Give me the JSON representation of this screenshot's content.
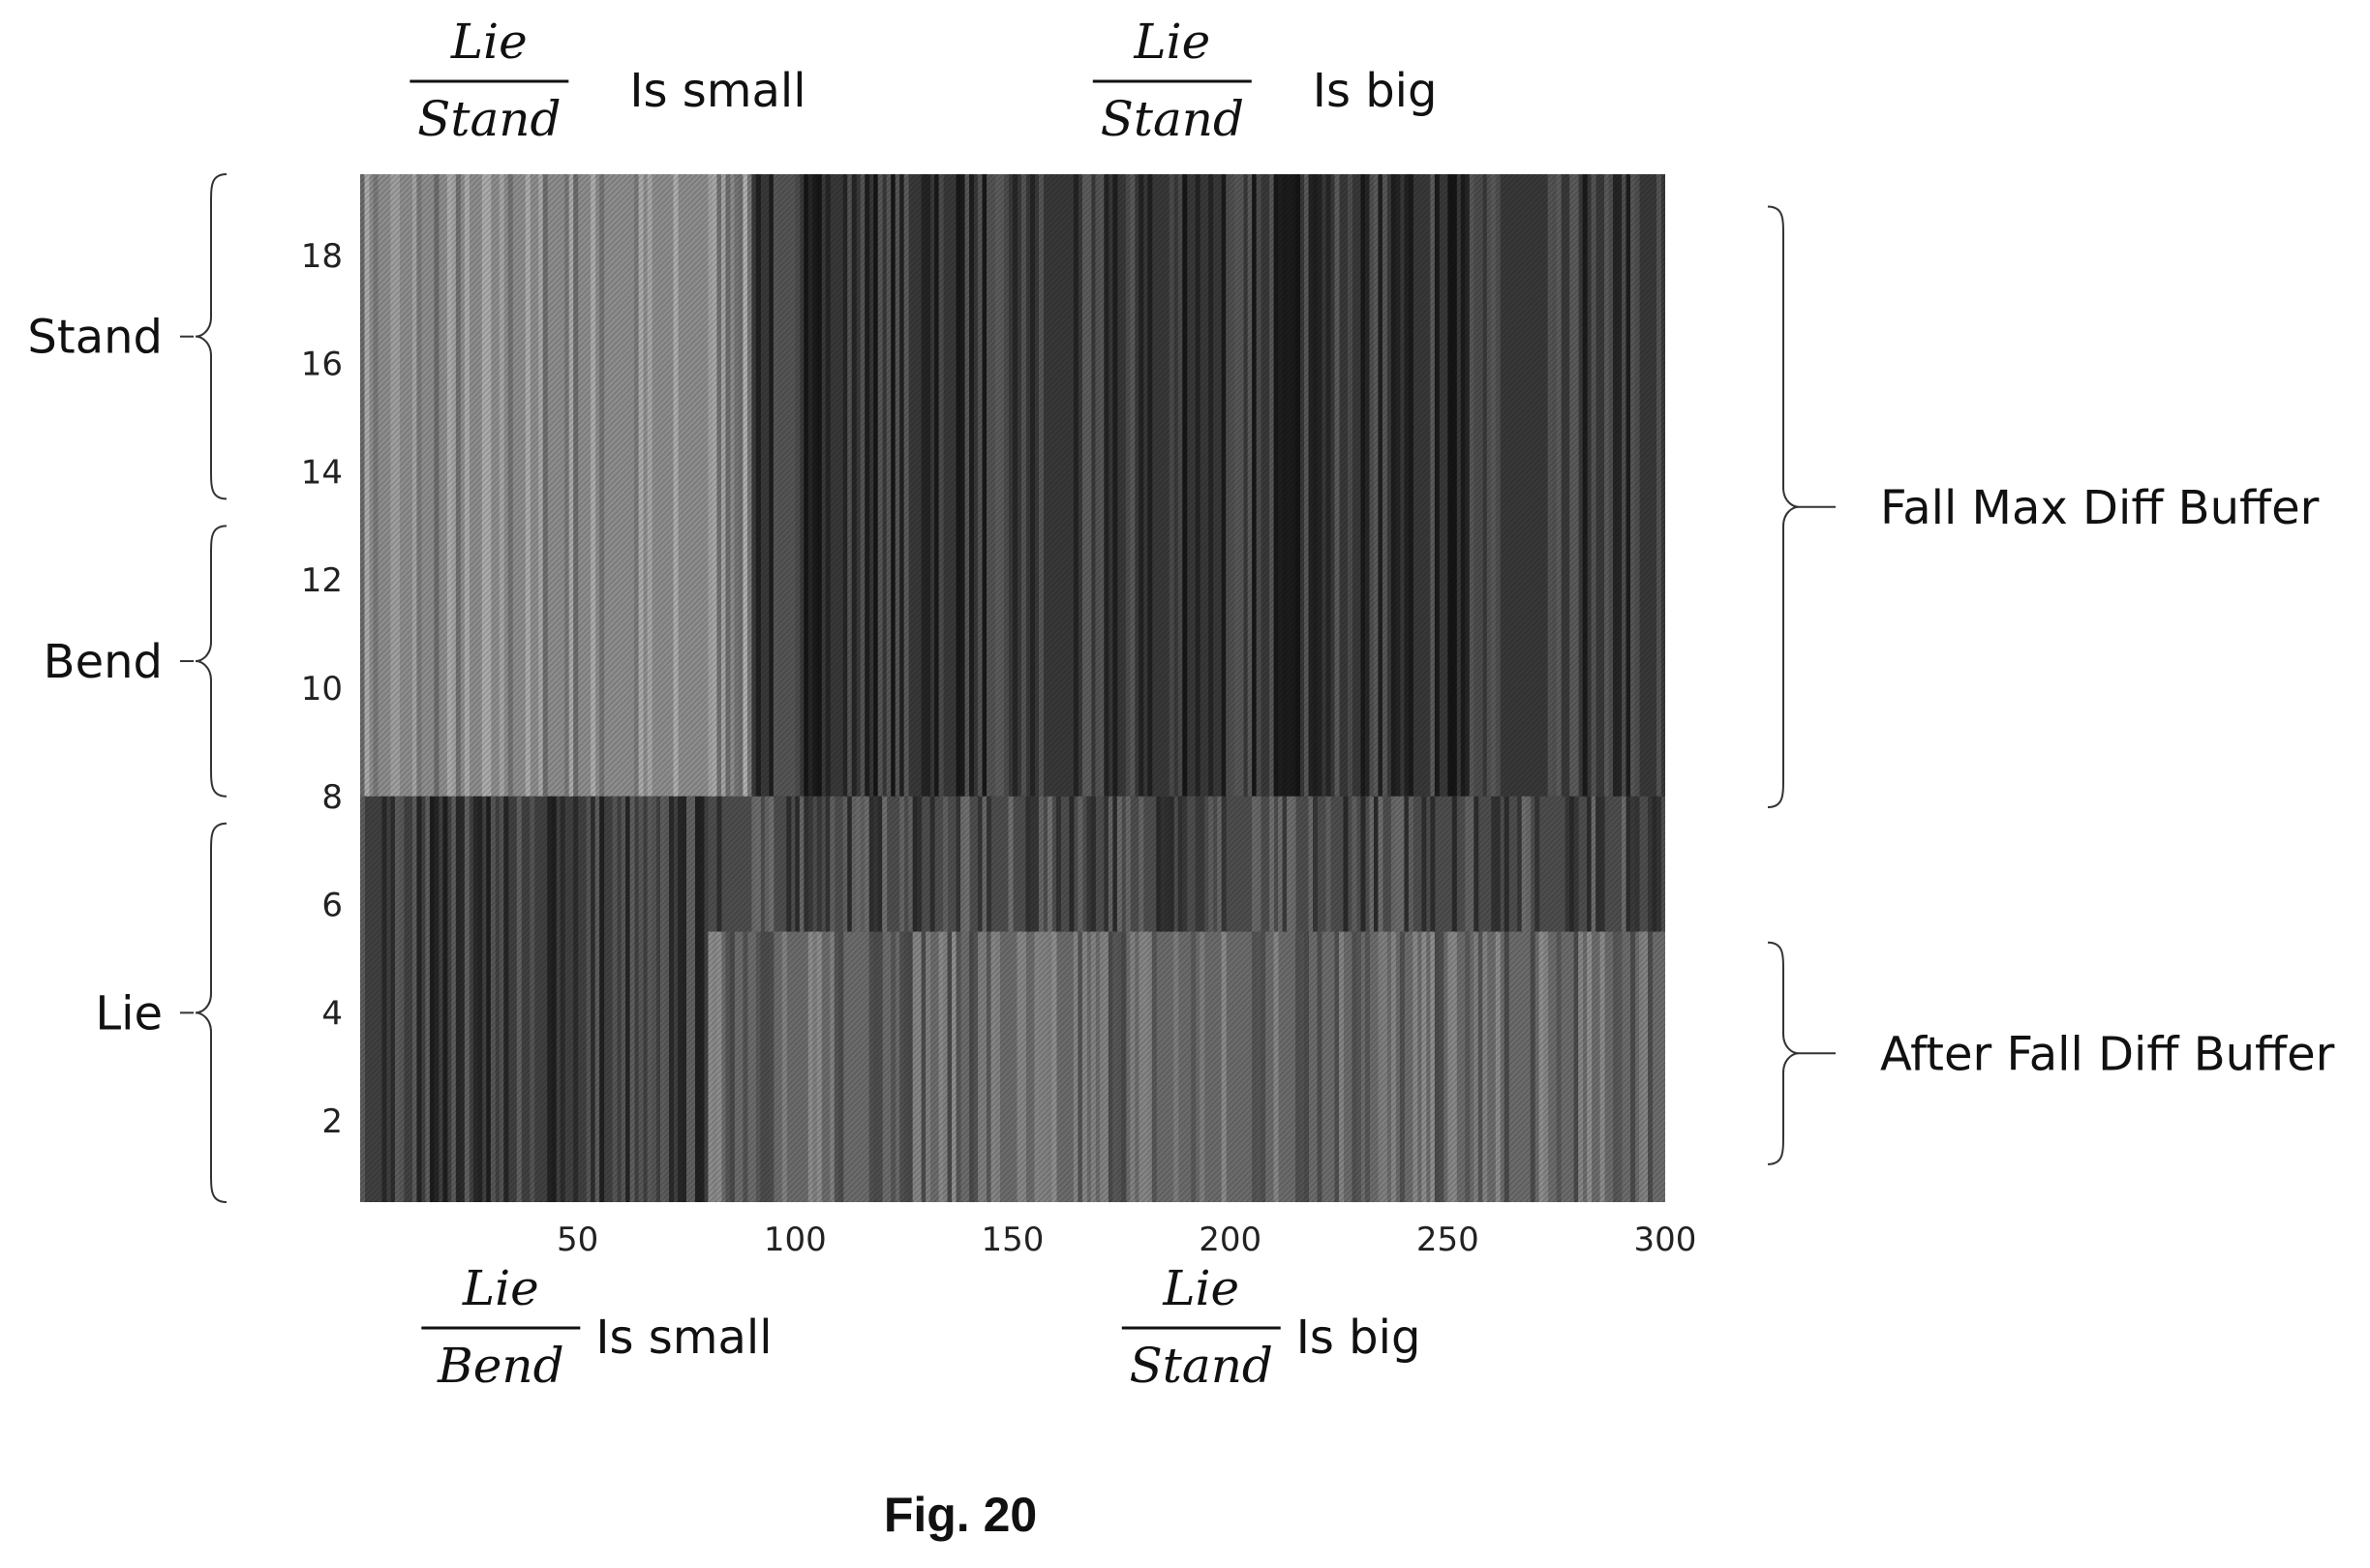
{
  "chart_data": {
    "type": "heatmap",
    "colormap": "grayscale",
    "x_ticks": [
      50,
      100,
      150,
      200,
      250,
      300
    ],
    "y_ticks": [
      2,
      4,
      6,
      8,
      10,
      12,
      14,
      16,
      18
    ],
    "xlim": [
      0,
      300
    ],
    "ylim": [
      0.5,
      19.5
    ],
    "grid": false,
    "top_annotations": [
      {
        "numerator": "Lie",
        "denominator": "Stand",
        "text": "Is small",
        "x": 25
      },
      {
        "numerator": "Lie",
        "denominator": "Stand",
        "text": "Is big",
        "x": 182
      }
    ],
    "bottom_annotations": [
      {
        "numerator": "Lie",
        "denominator": "Bend",
        "text": "Is small",
        "x": 27
      },
      {
        "numerator": "Lie",
        "denominator": "Stand",
        "text": "Is big",
        "x": 188
      }
    ],
    "left_groups": [
      {
        "label": "Stand",
        "y_from": 13.5,
        "y_to": 19.5
      },
      {
        "label": "Bend",
        "y_from": 8,
        "y_to": 13
      },
      {
        "label": "Lie",
        "y_from": 0.5,
        "y_to": 7.5
      }
    ],
    "right_groups": [
      {
        "label": "Fall Max Diff Buffer",
        "y_from": 7.8,
        "y_to": 18.9
      },
      {
        "label": "After Fall Diff Buffer",
        "y_from": 1.2,
        "y_to": 5.3
      }
    ],
    "intensity_regions": [
      {
        "x": [
          0,
          90
        ],
        "y": [
          8,
          19.5
        ],
        "level": 0.55
      },
      {
        "x": [
          90,
          300
        ],
        "y": [
          8,
          19.5
        ],
        "level": 0.22
      },
      {
        "x": [
          0,
          80
        ],
        "y": [
          0.5,
          8
        ],
        "level": 0.25
      },
      {
        "x": [
          80,
          300
        ],
        "y": [
          0.5,
          5.5
        ],
        "level": 0.42
      },
      {
        "x": [
          80,
          300
        ],
        "y": [
          5.5,
          8
        ],
        "level": 0.3
      }
    ]
  },
  "figure_label": "Fig. 20"
}
